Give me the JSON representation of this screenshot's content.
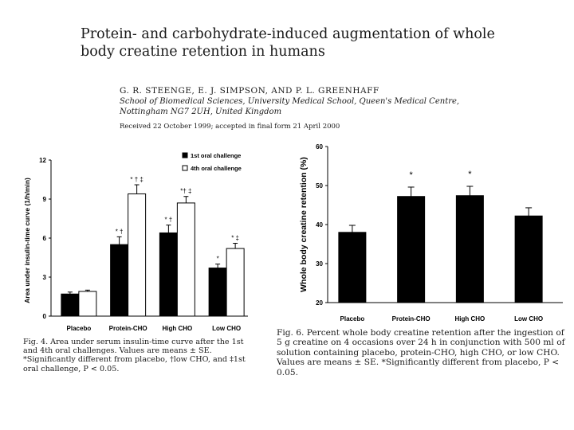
{
  "paper": {
    "title_line1": "Protein- and carbohydrate-induced augmentation of whole",
    "title_line2": "body creatine retention in humans",
    "authors": "G. R. STEENGE, E. J. SIMPSON, AND P. L. GREENHAFF",
    "affiliation_line1": "School of Biomedical Sciences, University Medical School, Queen's Medical Centre,",
    "affiliation_line2": "Nottingham NG7 2UH, United Kingdom",
    "received": "Received 22 October 1999; accepted in final form 21 April 2000"
  },
  "chart_data": [
    {
      "type": "bar",
      "figure": "Fig. 4",
      "ylabel": "Area under insulin-time curve (1/h/min)",
      "ylim": [
        0,
        12
      ],
      "yticks": [
        "0",
        "3",
        "6",
        "9",
        "12"
      ],
      "categories": [
        "Placebo",
        "Protein-CHO",
        "High CHO",
        "Low CHO"
      ],
      "series": [
        {
          "name": "1st oral challenge",
          "color": "#000000",
          "values": [
            1.7,
            5.5,
            6.4,
            3.7
          ],
          "errors": [
            0.15,
            0.6,
            0.6,
            0.3
          ],
          "annotations": [
            "",
            "* †",
            "* †",
            "*"
          ]
        },
        {
          "name": "4th oral challenge",
          "color": "#ffffff",
          "values": [
            1.9,
            9.4,
            8.7,
            5.2
          ],
          "errors": [
            0.1,
            0.7,
            0.5,
            0.4
          ],
          "annotations": [
            "",
            "* † ‡",
            "*† ‡",
            "* ‡"
          ]
        }
      ],
      "caption": "Fig. 4. Area under serum insulin-time curve after the 1st and 4th oral challenges. Values are means ± SE. *Significantly different from placebo, †low CHO, and ‡1st oral challenge, P < 0.05."
    },
    {
      "type": "bar",
      "figure": "Fig. 6",
      "ylabel": "Whole body creatine retention (%)",
      "ylim": [
        20,
        60
      ],
      "yticks": [
        "20",
        "30",
        "40",
        "50",
        "60"
      ],
      "categories": [
        "Placebo",
        "Protein-CHO",
        "High CHO",
        "Low CHO"
      ],
      "values": [
        38.0,
        47.2,
        47.4,
        42.2
      ],
      "errors": [
        1.8,
        2.4,
        2.4,
        2.1
      ],
      "annotations": [
        "",
        "*",
        "*",
        ""
      ],
      "caption": "Fig. 6. Percent whole body creatine retention after the ingestion of 5 g creatine on 4 occasions over 24 h in conjunction with 500 ml of solution containing placebo, protein-CHO, high CHO, or low CHO. Values are means ± SE. *Significantly different from placebo, P < 0.05."
    }
  ]
}
